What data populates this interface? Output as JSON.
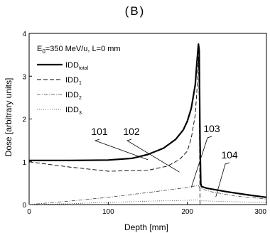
{
  "panel_label": "(B)",
  "chart_data": {
    "type": "line",
    "title": "",
    "xlabel": "Depth [mm]",
    "ylabel": "Dose [arbitrary units]",
    "xlim": [
      0,
      300
    ],
    "ylim": [
      0,
      4
    ],
    "xticks": [
      0,
      100,
      200,
      300
    ],
    "yticks": [
      0,
      1,
      2,
      3,
      4
    ],
    "grid": false,
    "condition_text": {
      "E": "E",
      "E_sub": "0",
      "rest": "=350 MeV/u, L=0 mm"
    },
    "legend_position": "top-left",
    "legend": [
      {
        "base": "IDD",
        "sub": "total"
      },
      {
        "base": "IDD",
        "sub": "1"
      },
      {
        "base": "IDD",
        "sub": "2"
      },
      {
        "base": "IDD",
        "sub": "3"
      }
    ],
    "series": [
      {
        "name": "IDD_total",
        "style": "solid-bold",
        "x": [
          0,
          50,
          100,
          130,
          150,
          170,
          185,
          195,
          200,
          205,
          210,
          212,
          214,
          215,
          216,
          217,
          218,
          225,
          250,
          275,
          300
        ],
        "y": [
          1.03,
          1.03,
          1.04,
          1.08,
          1.17,
          1.32,
          1.52,
          1.75,
          1.95,
          2.25,
          2.8,
          3.3,
          3.75,
          3.6,
          1.5,
          0.48,
          0.42,
          0.38,
          0.3,
          0.23,
          0.17
        ]
      },
      {
        "name": "IDD_1",
        "style": "dash",
        "x": [
          0,
          50,
          100,
          150,
          175,
          190,
          200,
          205,
          210,
          213,
          214,
          215,
          216
        ],
        "y": [
          1.0,
          0.88,
          0.78,
          0.8,
          0.9,
          1.05,
          1.25,
          1.55,
          2.1,
          2.9,
          3.45,
          2.4,
          0.0
        ]
      },
      {
        "name": "IDD_2",
        "style": "dash-dot",
        "x": [
          0,
          50,
          100,
          150,
          200,
          214,
          216,
          230,
          260,
          300
        ],
        "y": [
          0.0,
          0.08,
          0.17,
          0.28,
          0.4,
          0.45,
          0.38,
          0.3,
          0.2,
          0.13
        ]
      },
      {
        "name": "IDD_3",
        "style": "dot",
        "x": [
          0,
          50,
          100,
          150,
          200,
          214,
          216,
          250,
          300
        ],
        "y": [
          0.0,
          0.02,
          0.05,
          0.08,
          0.1,
          0.11,
          0.09,
          0.07,
          0.05
        ]
      }
    ],
    "annotations": [
      {
        "text": "101",
        "x": 150,
        "y": 1.05
      },
      {
        "text": "102",
        "x": 190,
        "y": 0.76
      },
      {
        "text": "103",
        "x": 205,
        "y": 0.4
      },
      {
        "text": "104",
        "x": 236,
        "y": 0.18
      }
    ]
  }
}
